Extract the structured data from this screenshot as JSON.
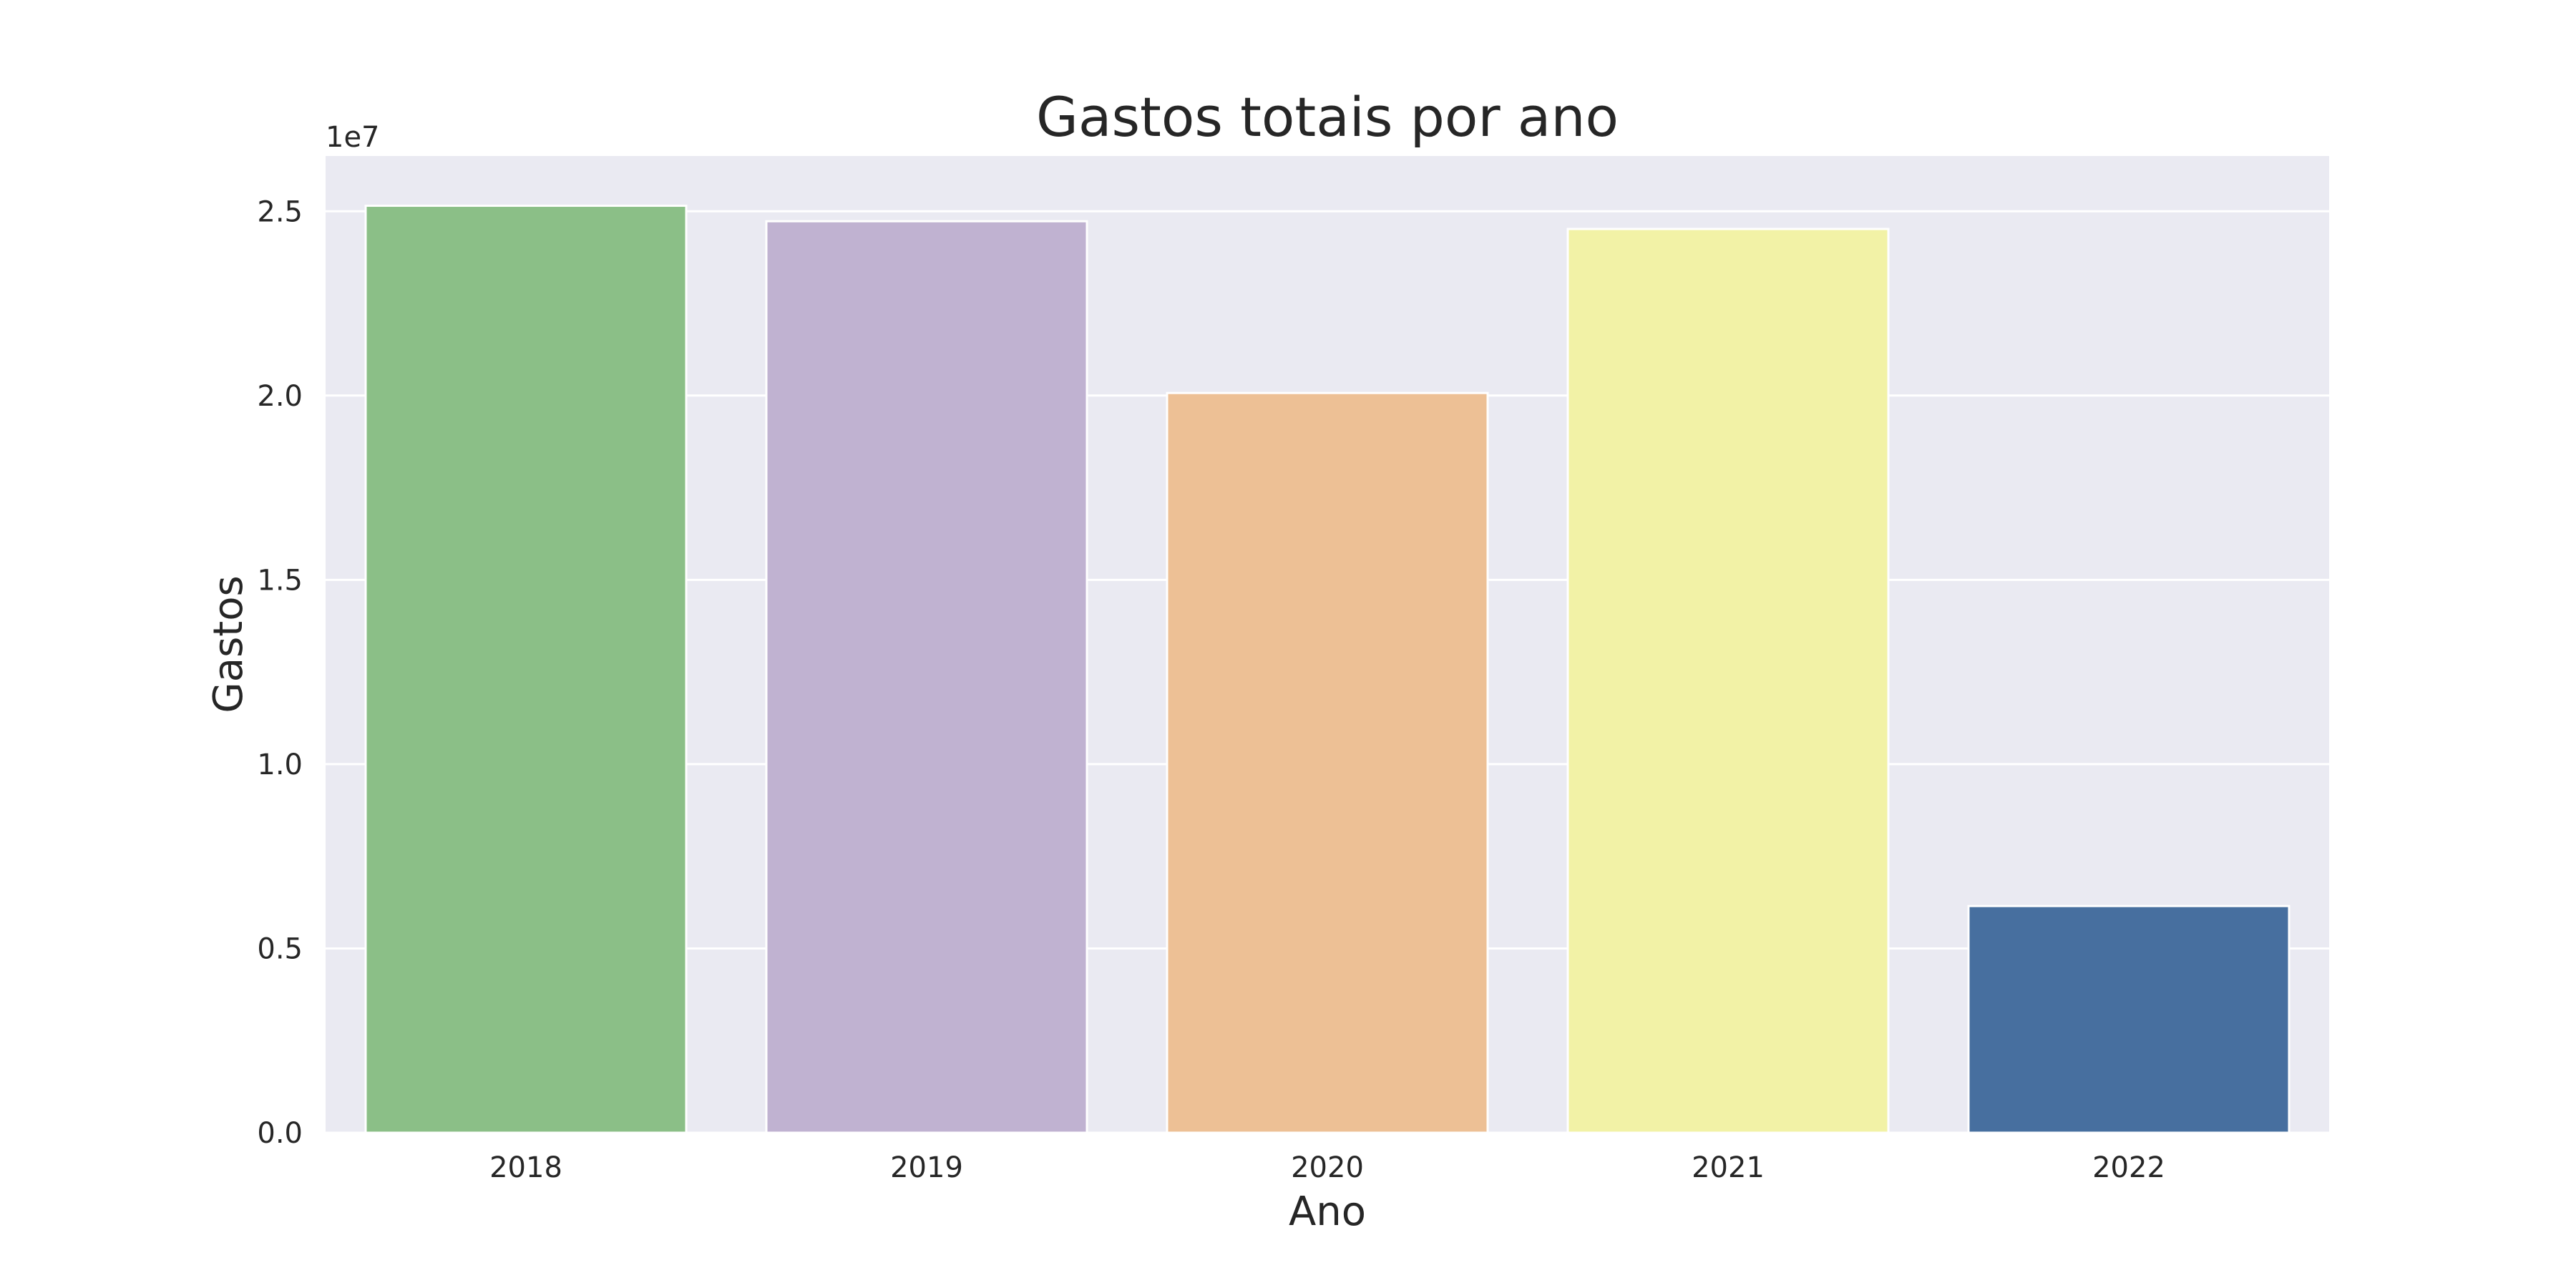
{
  "chart_data": {
    "type": "bar",
    "title": "Gastos totais por ano",
    "xlabel": "Ano",
    "ylabel": "Gastos",
    "y_offset_label": "1e7",
    "y_scale_factor": 10000000,
    "categories": [
      "2018",
      "2019",
      "2020",
      "2021",
      "2022"
    ],
    "values": [
      25150000,
      24730000,
      20070000,
      24520000,
      6150000
    ],
    "colors": [
      "#8bbf87",
      "#c0b2d1",
      "#edc095",
      "#f2f2a6",
      "#476f9f"
    ],
    "ylim": [
      0,
      26500000
    ],
    "yticks": [
      0,
      5000000,
      10000000,
      15000000,
      20000000,
      25000000
    ],
    "ytick_labels": [
      "0.0",
      "0.5",
      "1.0",
      "1.5",
      "2.0",
      "2.5"
    ],
    "grid": true,
    "background_color": "#eaeaf2",
    "grid_color": "#ffffff",
    "legend": false
  }
}
